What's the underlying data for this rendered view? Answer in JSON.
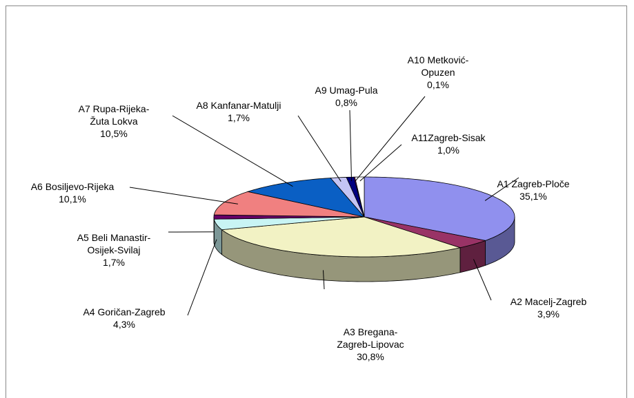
{
  "chart_data": {
    "type": "pie",
    "categories": [
      "A1 Zagreb-Ploče",
      "A2 Macelj-Zagreb",
      "A3 Bregana-\nZagreb-Lipovac",
      "A4 Goričan-Zagreb",
      "A5 Beli Manastir-\nOsijek-Svilaj",
      "A6 Bosiljevo-Rijeka",
      "A7 Rupa-Rijeka-\nŽuta Lokva",
      "A8 Kanfanar-Matulji",
      "A9 Umag-Pula",
      "A10 Metković-\nOpuzen",
      "A11Zagreb-Sisak"
    ],
    "values": [
      35.1,
      3.9,
      30.8,
      4.3,
      1.7,
      10.1,
      10.5,
      1.7,
      0.8,
      0.1,
      1.0
    ],
    "value_labels": [
      "35,1%",
      "3,9%",
      "30,8%",
      "4,3%",
      "1,7%",
      "10,1%",
      "10,5%",
      "1,7%",
      "0,8%",
      "0,1%",
      "1,0%"
    ],
    "colors": [
      "#9090ee",
      "#993366",
      "#f2f2c4",
      "#c8f4f4",
      "#660066",
      "#f08080",
      "#0a5fc4",
      "#c4c4f4",
      "#000080",
      "#d000d0",
      "#ffffff"
    ]
  }
}
